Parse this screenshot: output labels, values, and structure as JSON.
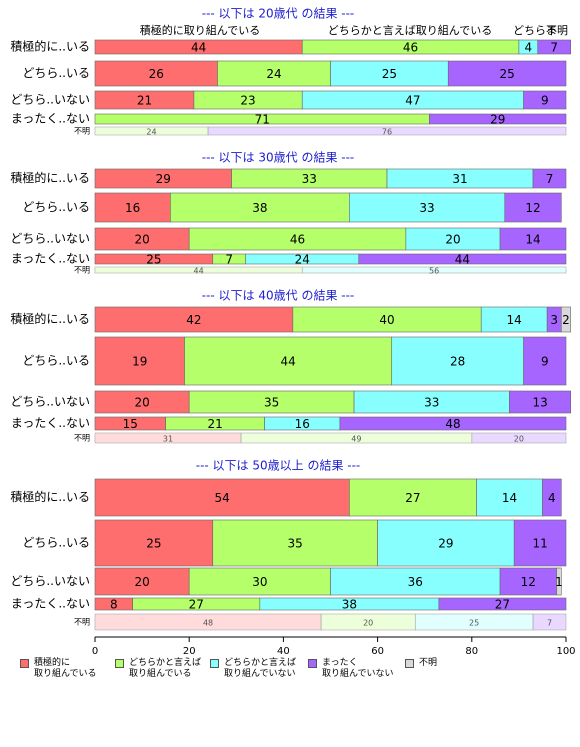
{
  "chart_data": [
    {
      "type": "bar",
      "title": "--- 以下は 20歳代 の結果 ---",
      "header_labels": [
        "積極的に取り組んでいる",
        "どちらかと言えば取り組んでいる",
        "どちらま",
        "不明"
      ],
      "categories": [
        "積極的に..いる",
        "どちら..いる",
        "どちら..いない",
        "まったく..ない",
        "不明"
      ],
      "xlim": [
        0,
        100
      ],
      "series": [
        {
          "name": "積極的に\n取り組んでいる",
          "color": "#ff6e6e",
          "values": [
            44,
            26,
            21,
            null,
            null
          ]
        },
        {
          "name": "どちらかと言えば\n取り組んでいる",
          "color": "#b4ff6a",
          "values": [
            46,
            24,
            23,
            71,
            24
          ]
        },
        {
          "name": "どちらかと言えば\n取り組んでいない",
          "color": "#88ffff",
          "values": [
            4,
            25,
            47,
            null,
            null
          ]
        },
        {
          "name": "まったく\n取り組んでいない",
          "color": "#a765ff",
          "values": [
            7,
            25,
            9,
            29,
            76
          ]
        },
        {
          "name": "不明",
          "color": "#d9d9d9",
          "values": [
            null,
            null,
            null,
            null,
            null
          ]
        }
      ]
    },
    {
      "type": "bar",
      "title": "--- 以下は 30歳代 の結果 ---",
      "categories": [
        "積極的に..いる",
        "どちら..いる",
        "どちら..いない",
        "まったく..ない",
        "不明"
      ],
      "xlim": [
        0,
        100
      ],
      "series": [
        {
          "name": "積極的に\n取り組んでいる",
          "color": "#ff6e6e",
          "values": [
            29,
            16,
            20,
            25,
            null
          ]
        },
        {
          "name": "どちらかと言えば\n取り組んでいる",
          "color": "#b4ff6a",
          "values": [
            33,
            38,
            46,
            7,
            44
          ]
        },
        {
          "name": "どちらかと言えば\n取り組んでいない",
          "color": "#88ffff",
          "values": [
            31,
            33,
            20,
            24,
            56
          ]
        },
        {
          "name": "まったく\n取り組んでいない",
          "color": "#a765ff",
          "values": [
            7,
            12,
            14,
            44,
            null
          ]
        },
        {
          "name": "不明",
          "color": "#d9d9d9",
          "values": [
            null,
            null,
            null,
            null,
            null
          ]
        }
      ]
    },
    {
      "type": "bar",
      "title": "--- 以下は 40歳代 の結果 ---",
      "categories": [
        "積極的に..いる",
        "どちら..いる",
        "どちら..いない",
        "まったく..ない",
        "不明"
      ],
      "xlim": [
        0,
        100
      ],
      "series": [
        {
          "name": "積極的に\n取り組んでいる",
          "color": "#ff6e6e",
          "values": [
            42,
            19,
            20,
            15,
            31
          ]
        },
        {
          "name": "どちらかと言えば\n取り組んでいる",
          "color": "#b4ff6a",
          "values": [
            40,
            44,
            35,
            21,
            49
          ]
        },
        {
          "name": "どちらかと言えば\n取り組んでいない",
          "color": "#88ffff",
          "values": [
            14,
            28,
            33,
            16,
            null
          ]
        },
        {
          "name": "まったく\n取り組んでいない",
          "color": "#a765ff",
          "values": [
            3,
            9,
            13,
            48,
            20
          ]
        },
        {
          "name": "不明",
          "color": "#d9d9d9",
          "values": [
            2,
            null,
            null,
            null,
            null
          ]
        }
      ]
    },
    {
      "type": "bar",
      "title": "--- 以下は 50歳以上 の結果 ---",
      "categories": [
        "積極的に..いる",
        "どちら..いる",
        "どちら..いない",
        "まったく..ない",
        "不明"
      ],
      "xlim": [
        0,
        100
      ],
      "xticks": [
        0,
        20,
        40,
        60,
        80,
        100
      ],
      "series": [
        {
          "name": "積極的に\n取り組んでいる",
          "color": "#ff6e6e",
          "values": [
            54,
            25,
            20,
            8,
            48
          ]
        },
        {
          "name": "どちらかと言えば\n取り組んでいる",
          "color": "#b4ff6a",
          "values": [
            27,
            35,
            30,
            27,
            20
          ]
        },
        {
          "name": "どちらかと言えば\n取り組んでいない",
          "color": "#88ffff",
          "values": [
            14,
            29,
            36,
            38,
            25
          ]
        },
        {
          "name": "まったく\n取り組んでいない",
          "color": "#a765ff",
          "values": [
            4,
            11,
            12,
            27,
            7
          ]
        },
        {
          "name": "不明",
          "color": "#d9d9d9",
          "values": [
            null,
            null,
            1,
            null,
            null
          ]
        }
      ]
    }
  ]
}
